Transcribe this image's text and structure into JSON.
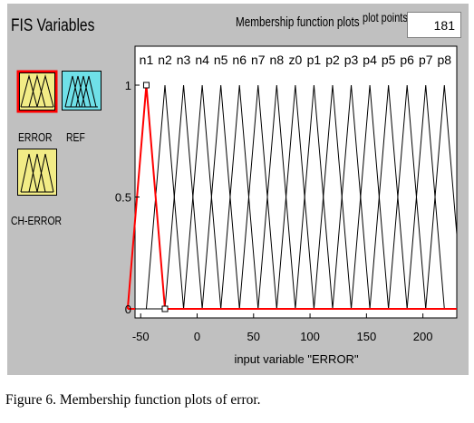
{
  "fis_variables_title": "FIS Variables",
  "membership_plots_label": "Membership function plots",
  "plot_points": {
    "label": "plot points:",
    "value": "181"
  },
  "variables": [
    {
      "name": "ERROR",
      "kind": "input",
      "selected": true
    },
    {
      "name": "REF",
      "kind": "output",
      "selected": false
    },
    {
      "name": "CH-ERROR",
      "kind": "input",
      "selected": false
    }
  ],
  "caption": "Figure 6. Membership function plots of error.",
  "colors": {
    "panel": "#c0c0c0",
    "input_box": "#f2ec86",
    "output_box": "#6fe0e8",
    "selected_border": "#ff0000",
    "selected_mf": "#ff0000",
    "mf_line": "#000000"
  },
  "chart_data": {
    "type": "line",
    "xlabel": "input variable \"ERROR\"",
    "xlim": [
      -55,
      230
    ],
    "ylim": [
      0,
      1
    ],
    "xticks": [
      -50,
      0,
      50,
      100,
      150,
      200
    ],
    "yticks": [
      0,
      0.5,
      1
    ],
    "selected": "n1",
    "series": [
      {
        "name": "n1",
        "peak": -45
      },
      {
        "name": "n2",
        "peak": -28.5
      },
      {
        "name": "n3",
        "peak": -12
      },
      {
        "name": "n4",
        "peak": 4.5
      },
      {
        "name": "n5",
        "peak": 21
      },
      {
        "name": "n6",
        "peak": 37.5
      },
      {
        "name": "n7",
        "peak": 54
      },
      {
        "name": "n8",
        "peak": 70.5
      },
      {
        "name": "z0",
        "peak": 87
      },
      {
        "name": "p1",
        "peak": 103.5
      },
      {
        "name": "p2",
        "peak": 120
      },
      {
        "name": "p3",
        "peak": 136.5
      },
      {
        "name": "p4",
        "peak": 153
      },
      {
        "name": "p5",
        "peak": 169.5
      },
      {
        "name": "p6",
        "peak": 186
      },
      {
        "name": "p7",
        "peak": 202.5
      },
      {
        "name": "p8",
        "peak": 219
      }
    ],
    "half_width": 16.5
  }
}
